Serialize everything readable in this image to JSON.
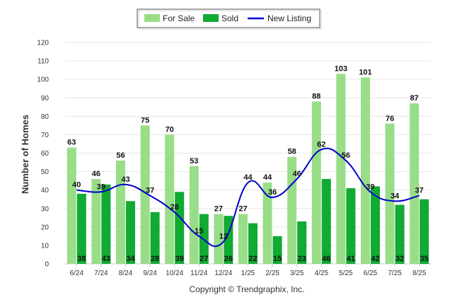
{
  "chart_data": {
    "type": "bar",
    "categories": [
      "6/24",
      "7/24",
      "8/24",
      "9/24",
      "10/24",
      "11/24",
      "12/24",
      "1/25",
      "2/25",
      "3/25",
      "4/25",
      "5/25",
      "6/25",
      "7/25",
      "8/25"
    ],
    "series": [
      {
        "name": "For Sale",
        "type": "bar",
        "color": "#99dd88",
        "values": [
          63,
          46,
          56,
          75,
          70,
          53,
          27,
          27,
          44,
          58,
          88,
          103,
          101,
          76,
          87
        ]
      },
      {
        "name": "Sold",
        "type": "bar",
        "color": "#11aa33",
        "values": [
          38,
          43,
          34,
          28,
          39,
          27,
          26,
          22,
          15,
          23,
          46,
          41,
          42,
          32,
          35
        ]
      },
      {
        "name": "New Listing",
        "type": "line",
        "color": "#0000cc",
        "values": [
          40,
          39,
          43,
          37,
          28,
          15,
          12,
          44,
          36,
          46,
          62,
          56,
          39,
          34,
          37
        ]
      }
    ],
    "ylabel": "Number of Homes",
    "ylim": [
      0,
      120
    ],
    "yticks": [
      0,
      10,
      20,
      30,
      40,
      50,
      60,
      70,
      80,
      90,
      100,
      110,
      120
    ],
    "grid": true,
    "legend_position": "top-center"
  },
  "footer": {
    "copyright": "Copyright © Trendgraphix, Inc."
  }
}
